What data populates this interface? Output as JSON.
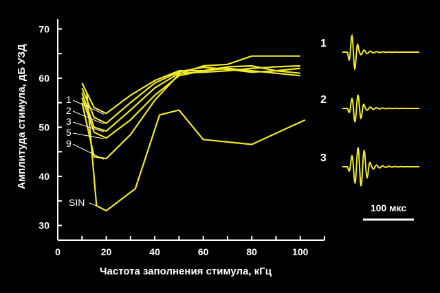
{
  "chart_data": {
    "type": "line",
    "xlabel": "Частота заполнения стимула, кГц",
    "ylabel": "Амплитуда стимула, дБ УЗД",
    "xlim": [
      0,
      110
    ],
    "ylim": [
      27,
      72
    ],
    "xticks": [
      0,
      20,
      40,
      60,
      80,
      100
    ],
    "yticks": [
      30,
      40,
      50,
      60,
      70
    ],
    "legend": "inline-left",
    "color": "#f2ea2a",
    "series": [
      {
        "name": "1",
        "x": [
          10,
          15,
          20,
          30,
          40,
          50,
          60,
          70,
          80,
          90,
          100
        ],
        "y": [
          59,
          54,
          52.8,
          56.5,
          59.5,
          61.5,
          61.5,
          62,
          61.5,
          61,
          60.5
        ]
      },
      {
        "name": "2",
        "x": [
          10,
          15,
          20,
          30,
          40,
          50,
          60,
          70,
          80,
          90,
          100
        ],
        "y": [
          58,
          52,
          50.8,
          55,
          59,
          61.3,
          62.2,
          61.8,
          61.2,
          61.5,
          62
        ]
      },
      {
        "name": "3",
        "x": [
          10,
          15,
          20,
          30,
          40,
          50,
          60,
          70,
          80,
          90,
          100
        ],
        "y": [
          57,
          50,
          49.2,
          53.5,
          58,
          61,
          61.2,
          61.5,
          62,
          62.3,
          62.5
        ]
      },
      {
        "name": "5",
        "x": [
          10,
          15,
          20,
          30,
          40,
          50,
          60,
          70,
          80,
          90,
          100
        ],
        "y": [
          56,
          49,
          47.8,
          51.5,
          56.5,
          60.5,
          61.5,
          62.3,
          62.5,
          61.5,
          61
        ]
      },
      {
        "name": "9",
        "x": [
          10,
          15,
          20,
          30,
          40,
          50,
          60,
          70,
          80,
          90,
          100
        ],
        "y": [
          55,
          44,
          43.6,
          48.5,
          55.5,
          60.8,
          62.5,
          62.8,
          64.5,
          64.5,
          64.5
        ]
      },
      {
        "name": "SIN",
        "x": [
          12,
          16,
          20,
          32,
          42,
          50,
          60,
          80,
          102
        ],
        "y": [
          57,
          34,
          33,
          37.5,
          52.5,
          53.5,
          47.5,
          46.5,
          51.5
        ]
      }
    ]
  },
  "waveforms": [
    {
      "label": "1"
    },
    {
      "label": "2"
    },
    {
      "label": "3"
    }
  ],
  "scale_bar": {
    "label": "100 мкс"
  }
}
